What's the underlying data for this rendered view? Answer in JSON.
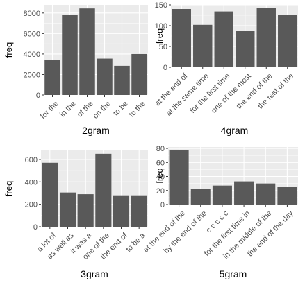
{
  "colors": {
    "panel_bg": "#ebebeb",
    "grid": "#ffffff",
    "bar": "#595959",
    "tick_text": "#4d4d4d"
  },
  "chart_data": [
    {
      "type": "bar",
      "xlabel": "2gram",
      "ylabel": "freq",
      "categories": [
        "for the",
        "in the",
        "of the",
        "on the",
        "to be",
        "to the"
      ],
      "values": [
        3400,
        7850,
        8450,
        3550,
        2850,
        4000
      ],
      "ylim": [
        0,
        8800
      ],
      "yticks": [
        0,
        2000,
        4000,
        6000,
        8000
      ],
      "grid": true
    },
    {
      "type": "bar",
      "xlabel": "4gram",
      "ylabel": "freq",
      "categories": [
        "at the end of",
        "at the same time",
        "for the first time",
        "one of the most",
        "the end of the",
        "the rest of the"
      ],
      "values": [
        140,
        102,
        134,
        87,
        143,
        126
      ],
      "ylim": [
        0,
        150
      ],
      "yticks": [
        0,
        50,
        100,
        150
      ],
      "grid": true
    },
    {
      "type": "bar",
      "xlabel": "3gram",
      "ylabel": "freq",
      "categories": [
        "a lot of",
        "as well as",
        "it was a",
        "one of the",
        "the end of",
        "to be a"
      ],
      "values": [
        570,
        305,
        290,
        650,
        280,
        280
      ],
      "ylim": [
        0,
        680
      ],
      "yticks": [
        0,
        200,
        400,
        600
      ],
      "grid": true
    },
    {
      "type": "bar",
      "xlabel": "5gram",
      "ylabel": "freq",
      "categories": [
        "at the end of the",
        "by the end of the",
        "c c c c c",
        "for the first time in",
        "in the middle of the",
        "the end of the day"
      ],
      "values": [
        78,
        22,
        27,
        33,
        30,
        25
      ],
      "ylim": [
        0,
        82
      ],
      "yticks": [
        0,
        20,
        40,
        60,
        80
      ],
      "grid": true
    }
  ]
}
